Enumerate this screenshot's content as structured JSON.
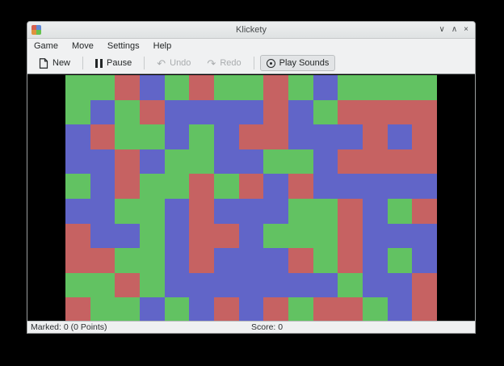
{
  "window": {
    "title": "Klickety",
    "controls": [
      {
        "name": "minimize",
        "glyph": "∨"
      },
      {
        "name": "maximize",
        "glyph": "∧"
      },
      {
        "name": "close",
        "glyph": "×"
      }
    ],
    "app_icon_colors": [
      "#d6604e",
      "#5f87d6",
      "#e0913c",
      "#64c24e"
    ]
  },
  "menu_bar": {
    "items": [
      "Game",
      "Move",
      "Settings",
      "Help"
    ]
  },
  "toolbar": {
    "buttons": [
      {
        "label": "New",
        "icon": "document-new-icon",
        "state": "normal"
      },
      {
        "label": "Pause",
        "icon": "pause-icon",
        "state": "normal"
      },
      {
        "label": "Undo",
        "icon": "undo-arrow-icon",
        "state": "disabled"
      },
      {
        "label": "Redo",
        "icon": "redo-arrow-icon",
        "state": "disabled"
      },
      {
        "label": "Play Sounds",
        "icon": "sound-icon",
        "state": "toggled-on"
      }
    ],
    "undo_glyph": "↶",
    "redo_glyph": "↷"
  },
  "status_bar": {
    "marked_text": "Marked: 0 (0 Points)",
    "score_text": "Score: 0"
  },
  "board": {
    "columns": 15,
    "rows": 10,
    "colors": {
      "G": "#62c262",
      "R": "#c66262",
      "B": "#6165c8"
    },
    "grid": [
      "GGRBGRGGRGBGGGG",
      "GBGRBBBBRBGRRRR",
      "BRGGBGBRRBBBRBR",
      "BBRBGGBBGGBRRRR",
      "GBRGGRGRBRBBBBB",
      "BBGGBRBBBGGRBGR",
      "RBBGBRRBGGGRBBB",
      "RRGGBRBBBRGRBGB",
      "GGRGBBBBBBBGBBR",
      "RGGBGBRBRGRRGBR"
    ]
  }
}
